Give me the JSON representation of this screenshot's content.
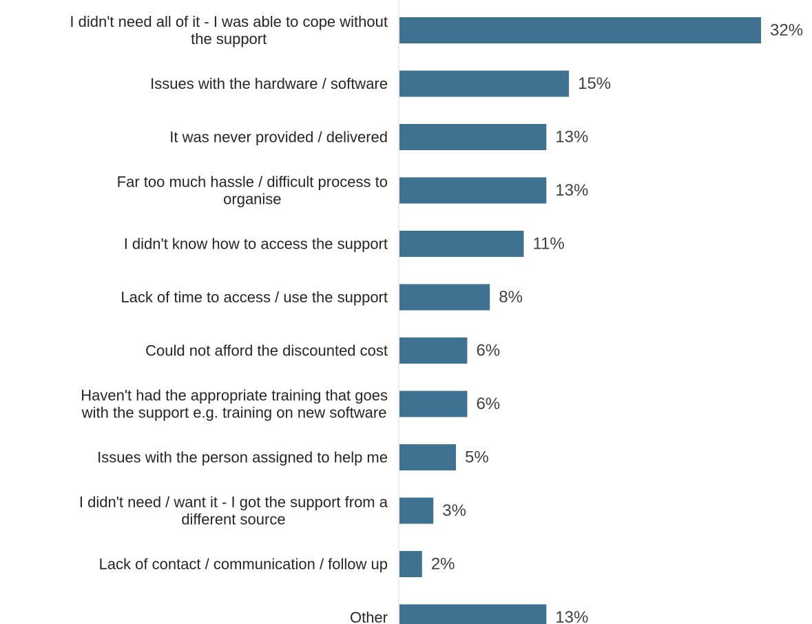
{
  "chart_data": {
    "type": "bar",
    "orientation": "horizontal",
    "categories": [
      "I didn't need all of it - I was able to cope without the support",
      "Issues with the hardware / software",
      "It was never provided / delivered",
      "Far too much hassle / difficult process to organise",
      "I didn't know how to access the support",
      "Lack of time to access / use the support",
      "Could not afford the discounted cost",
      "Haven't had the appropriate training that goes with the support e.g. training on new software",
      "Issues with the person assigned to help me",
      "I didn't need / want it - I got the support from a different source",
      "Lack of contact / communication / follow up",
      "Other"
    ],
    "category_lines": [
      [
        "I didn't need all of it - I was able to cope without",
        "the support"
      ],
      [
        "Issues with the hardware / software"
      ],
      [
        "It was never provided / delivered"
      ],
      [
        "Far too much hassle / difficult process to",
        "organise"
      ],
      [
        "I didn't know how to access the support"
      ],
      [
        "Lack of time to access / use the support"
      ],
      [
        "Could not afford the discounted cost"
      ],
      [
        "Haven't had the appropriate training that goes",
        "with the support e.g. training on new software"
      ],
      [
        "Issues with the person assigned to help me"
      ],
      [
        "I didn't need / want it - I got the support from a",
        "different source"
      ],
      [
        "Lack of contact / communication / follow up"
      ],
      [
        "Other"
      ]
    ],
    "values": [
      32,
      15,
      13,
      13,
      11,
      8,
      6,
      6,
      5,
      3,
      2,
      13
    ],
    "value_labels": [
      "32%",
      "15%",
      "13%",
      "13%",
      "11%",
      "8%",
      "6%",
      "6%",
      "5%",
      "3%",
      "2%",
      "13%"
    ],
    "title": "",
    "xlabel": "",
    "ylabel": "",
    "xlim": [
      0,
      32
    ],
    "grid": false,
    "bar_color": "#3f7291",
    "axis_color": "#d9d9d9"
  }
}
